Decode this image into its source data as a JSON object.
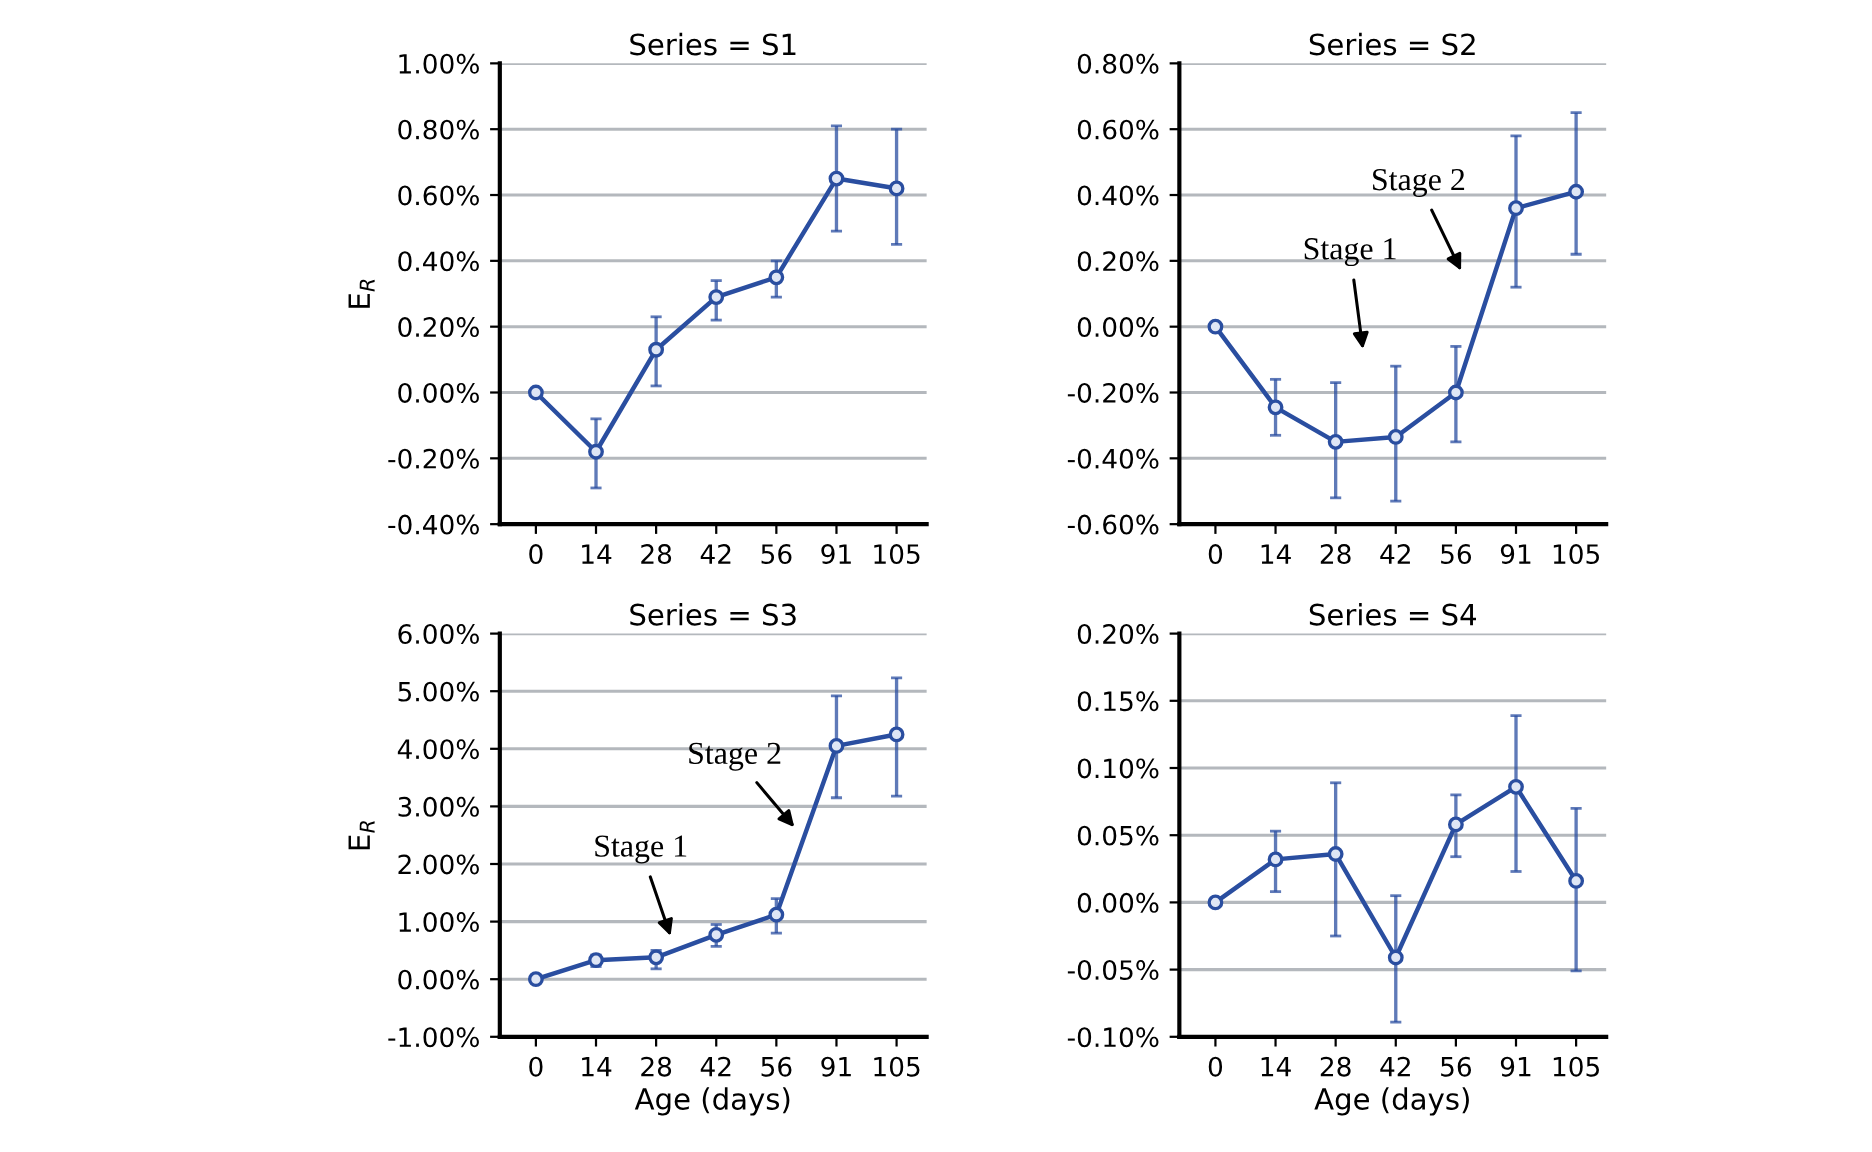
{
  "chart_data": [
    {
      "type": "line",
      "title": "Series = S1",
      "ylabel": "E$_{R}$",
      "categories": [
        "0",
        "14",
        "28",
        "42",
        "56",
        "91",
        "105"
      ],
      "series": [
        {
          "color": "#2a4ea0",
          "values": [
            0,
            -0.18,
            0.13,
            0.29,
            0.35,
            0.65,
            0.62
          ],
          "errors": [
            null,
            [
              -0.29,
              -0.08
            ],
            [
              0.02,
              0.23
            ],
            [
              0.22,
              0.34
            ],
            [
              0.29,
              0.4
            ],
            [
              0.49,
              0.81
            ],
            [
              0.45,
              0.8
            ]
          ]
        }
      ],
      "ylim": [
        -0.4,
        1.0
      ],
      "yticks": [
        {
          "value": -0.4,
          "label": "-0.40%"
        },
        {
          "value": -0.2,
          "label": "-0.20%"
        },
        {
          "value": 0,
          "label": "0.00%"
        },
        {
          "value": 0.2,
          "label": "0.20%"
        },
        {
          "value": 0.4,
          "label": "0.40%"
        },
        {
          "value": 0.6,
          "label": "0.60%"
        },
        {
          "value": 0.8,
          "label": "0.80%"
        },
        {
          "value": 1.0,
          "label": "1.00%"
        }
      ],
      "grid": "y",
      "marker": "circle",
      "line_style": "solid"
    },
    {
      "type": "line",
      "title": "Series = S2",
      "categories": [
        "0",
        "14",
        "28",
        "42",
        "56",
        "91",
        "105"
      ],
      "series": [
        {
          "color": "#2a4ea0",
          "values": [
            0,
            -0.245,
            -0.35,
            -0.335,
            -0.2,
            0.36,
            0.41
          ],
          "errors": [
            null,
            [
              -0.33,
              -0.16
            ],
            [
              -0.52,
              -0.17
            ],
            [
              -0.53,
              -0.12
            ],
            [
              -0.35,
              -0.06
            ],
            [
              0.12,
              0.58
            ],
            [
              0.22,
              0.65
            ]
          ]
        }
      ],
      "ylim": [
        -0.6,
        0.8
      ],
      "yticks": [
        {
          "value": -0.6,
          "label": "-0.60%"
        },
        {
          "value": -0.4,
          "label": "-0.40%"
        },
        {
          "value": -0.2,
          "label": "-0.20%"
        },
        {
          "value": 0,
          "label": "0.00%"
        },
        {
          "value": 0.2,
          "label": "0.20%"
        },
        {
          "value": 0.4,
          "label": "0.40%"
        },
        {
          "value": 0.6,
          "label": "0.60%"
        },
        {
          "value": 0.8,
          "label": "0.80%"
        }
      ],
      "annotations": [
        "Stage 1",
        "Stage 2"
      ],
      "grid": "y",
      "marker": "circle",
      "line_style": "solid"
    },
    {
      "type": "line",
      "title": "Series = S3",
      "xlabel": "Age (days)",
      "ylabel": "E$_{R}$",
      "categories": [
        "0",
        "14",
        "28",
        "42",
        "56",
        "91",
        "105"
      ],
      "series": [
        {
          "color": "#2a4ea0",
          "values": [
            0,
            0.33,
            0.38,
            0.77,
            1.12,
            4.05,
            4.25
          ],
          "errors": [
            null,
            [
              0.22,
              0.42
            ],
            [
              0.18,
              0.5
            ],
            [
              0.57,
              0.95
            ],
            [
              0.8,
              1.4
            ],
            [
              3.15,
              4.92
            ],
            [
              3.18,
              5.23
            ]
          ]
        }
      ],
      "ylim": [
        -1.0,
        6.0
      ],
      "yticks": [
        {
          "value": -1,
          "label": "-1.00%"
        },
        {
          "value": 0,
          "label": "0.00%"
        },
        {
          "value": 1,
          "label": "1.00%"
        },
        {
          "value": 2,
          "label": "2.00%"
        },
        {
          "value": 3,
          "label": "3.00%"
        },
        {
          "value": 4,
          "label": "4.00%"
        },
        {
          "value": 5,
          "label": "5.00%"
        },
        {
          "value": 6,
          "label": "6.00%"
        }
      ],
      "annotations": [
        "Stage 1",
        "Stage 2"
      ],
      "grid": "y",
      "marker": "circle",
      "line_style": "solid"
    },
    {
      "type": "line",
      "title": "Series = S4",
      "xlabel": "Age (days)",
      "categories": [
        "0",
        "14",
        "28",
        "42",
        "56",
        "91",
        "105"
      ],
      "series": [
        {
          "color": "#2a4ea0",
          "values": [
            0,
            0.032,
            0.036,
            -0.041,
            0.058,
            0.086,
            0.016
          ],
          "errors": [
            null,
            [
              0.008,
              0.053
            ],
            [
              -0.025,
              0.089
            ],
            [
              -0.089,
              0.005
            ],
            [
              0.034,
              0.08
            ],
            [
              0.023,
              0.139
            ],
            [
              -0.051,
              0.07
            ]
          ]
        }
      ],
      "ylim": [
        -0.1,
        0.2
      ],
      "yticks": [
        {
          "value": -0.1,
          "label": "-0.10%"
        },
        {
          "value": -0.05,
          "label": "-0.05%"
        },
        {
          "value": 0,
          "label": "0.00%"
        },
        {
          "value": 0.05,
          "label": "0.05%"
        },
        {
          "value": 0.1,
          "label": "0.10%"
        },
        {
          "value": 0.15,
          "label": "0.15%"
        },
        {
          "value": 0.2,
          "label": "0.20%"
        }
      ],
      "grid": "y",
      "marker": "circle",
      "line_style": "solid"
    }
  ]
}
